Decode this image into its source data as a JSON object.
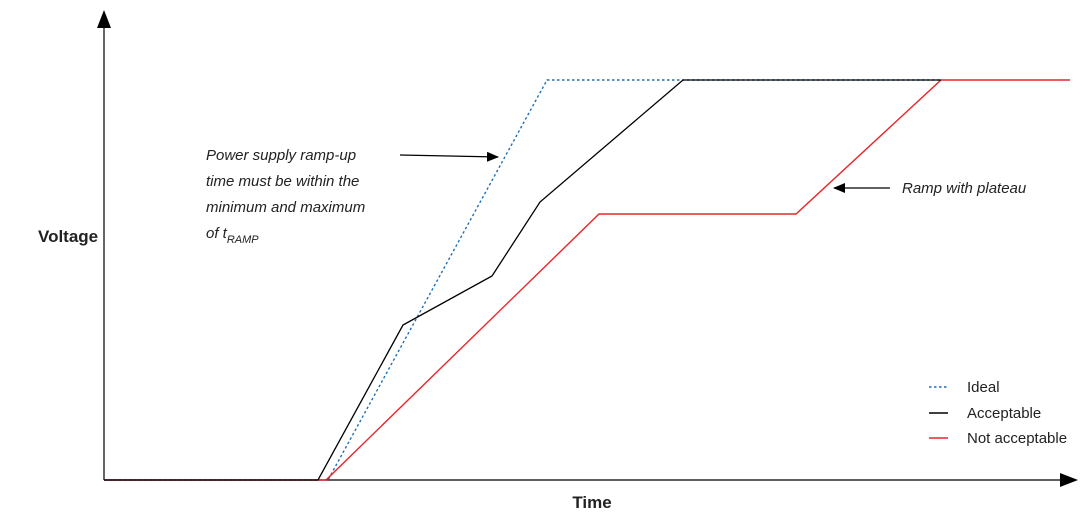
{
  "axes": {
    "y_label": "Voltage",
    "x_label": "Time"
  },
  "annotations": {
    "ramp_time": {
      "line1": "Power supply ramp-up",
      "line2": "time must be within the",
      "line3": "minimum and maximum",
      "line4_prefix": "of t",
      "line4_subscript": "RAMP"
    },
    "plateau": "Ramp with plateau"
  },
  "legend": [
    {
      "label": "Ideal",
      "color": "#1f6fb5",
      "style": "dotted"
    },
    {
      "label": "Acceptable",
      "color": "#000000",
      "style": "solid"
    },
    {
      "label": "Not acceptable",
      "color": "#e8262a",
      "style": "solid"
    }
  ],
  "colors": {
    "ideal": "#1f6fb5",
    "acceptable": "#000000",
    "not_acceptable": "#e8262a",
    "axis": "#000000"
  }
}
